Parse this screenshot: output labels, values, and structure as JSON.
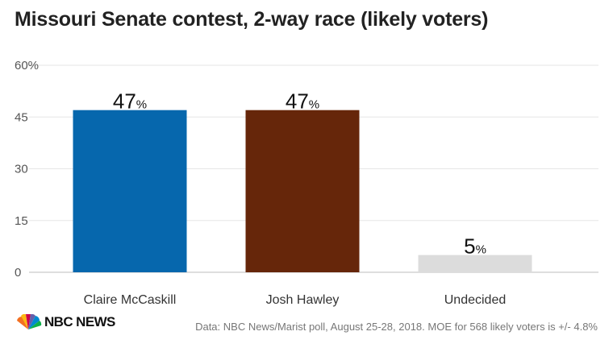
{
  "chart_data": {
    "type": "bar",
    "title": "Missouri Senate contest, 2-way race (likely voters)",
    "categories": [
      "Claire McCaskill",
      "Josh Hawley",
      "Undecided"
    ],
    "values": [
      47,
      47,
      5
    ],
    "colors": [
      "#0667ad",
      "#66260a",
      "#dcdcdc"
    ],
    "value_unit": "%",
    "ylim": [
      0,
      60
    ],
    "yticks": [
      "0",
      "15",
      "30",
      "45",
      "60%"
    ],
    "ytick_values": [
      0,
      15,
      30,
      45,
      60
    ],
    "grid": true
  },
  "brand": {
    "name": "NBC NEWS",
    "logo_icon": "peacock-icon"
  },
  "source_note": "Data: NBC News/Marist poll, August 25-28, 2018. MOE for 568 likely voters is +/- 4.8%"
}
